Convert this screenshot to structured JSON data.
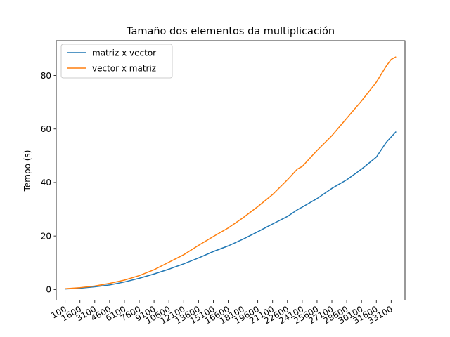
{
  "chart_data": {
    "type": "line",
    "title": "Tamaño dos elementos da multiplicación",
    "xlabel": "",
    "ylabel": "Tempo (s)",
    "x_tick_labels": [
      "100",
      "1600",
      "3100",
      "4600",
      "6100",
      "7600",
      "9100",
      "10600",
      "12100",
      "13600",
      "15100",
      "16600",
      "18100",
      "19600",
      "21100",
      "22600",
      "24100",
      "25600",
      "27100",
      "28600",
      "30100",
      "31600",
      "33100"
    ],
    "x_tick_step": 1500,
    "x": [
      100,
      1600,
      3100,
      4600,
      6100,
      7600,
      9100,
      10600,
      12100,
      13600,
      15100,
      16600,
      18100,
      19600,
      21100,
      22600,
      23600,
      24100,
      25600,
      27100,
      28600,
      30100,
      31600,
      32600,
      33100,
      33600
    ],
    "xlim": [
      -800,
      34500
    ],
    "ylim": [
      -4,
      93
    ],
    "y_ticks": [
      0,
      20,
      40,
      60,
      80
    ],
    "grid": false,
    "legend": "top-left",
    "series": [
      {
        "name": "matriz x vector",
        "color": "#1f77b4",
        "values": [
          0.2,
          0.5,
          1.0,
          1.7,
          2.8,
          4.2,
          5.8,
          7.6,
          9.6,
          11.8,
          14.2,
          16.3,
          18.8,
          21.6,
          24.5,
          27.3,
          29.8,
          30.8,
          34.0,
          37.8,
          41.0,
          45.0,
          49.5,
          55.0,
          57.0,
          59.0
        ]
      },
      {
        "name": "vector x matriz",
        "color": "#ff7f0e",
        "values": [
          0.3,
          0.7,
          1.3,
          2.3,
          3.5,
          5.2,
          7.4,
          10.2,
          13.0,
          16.5,
          19.8,
          23.0,
          26.8,
          31.0,
          35.5,
          41.0,
          45.0,
          46.0,
          52.0,
          57.5,
          64.0,
          70.5,
          77.5,
          83.5,
          86.0,
          87.0
        ]
      }
    ]
  }
}
